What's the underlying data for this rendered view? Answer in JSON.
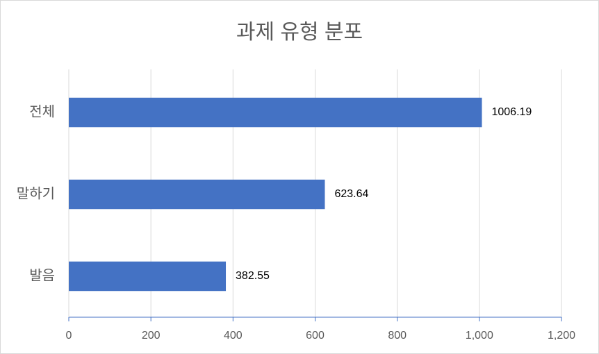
{
  "chart_data": {
    "type": "bar",
    "orientation": "horizontal",
    "title": "과제 유형 분포",
    "categories": [
      "전체",
      "말하기",
      "발음"
    ],
    "values": [
      1006.19,
      623.64,
      382.55
    ],
    "color": "#4472c4",
    "xlim": [
      0,
      1200
    ],
    "xticks": [
      0,
      200,
      400,
      600,
      800,
      {
        "value": 1000,
        "label": "1,000"
      },
      {
        "value": 1200,
        "label": "1,200"
      }
    ],
    "grid": true
  }
}
